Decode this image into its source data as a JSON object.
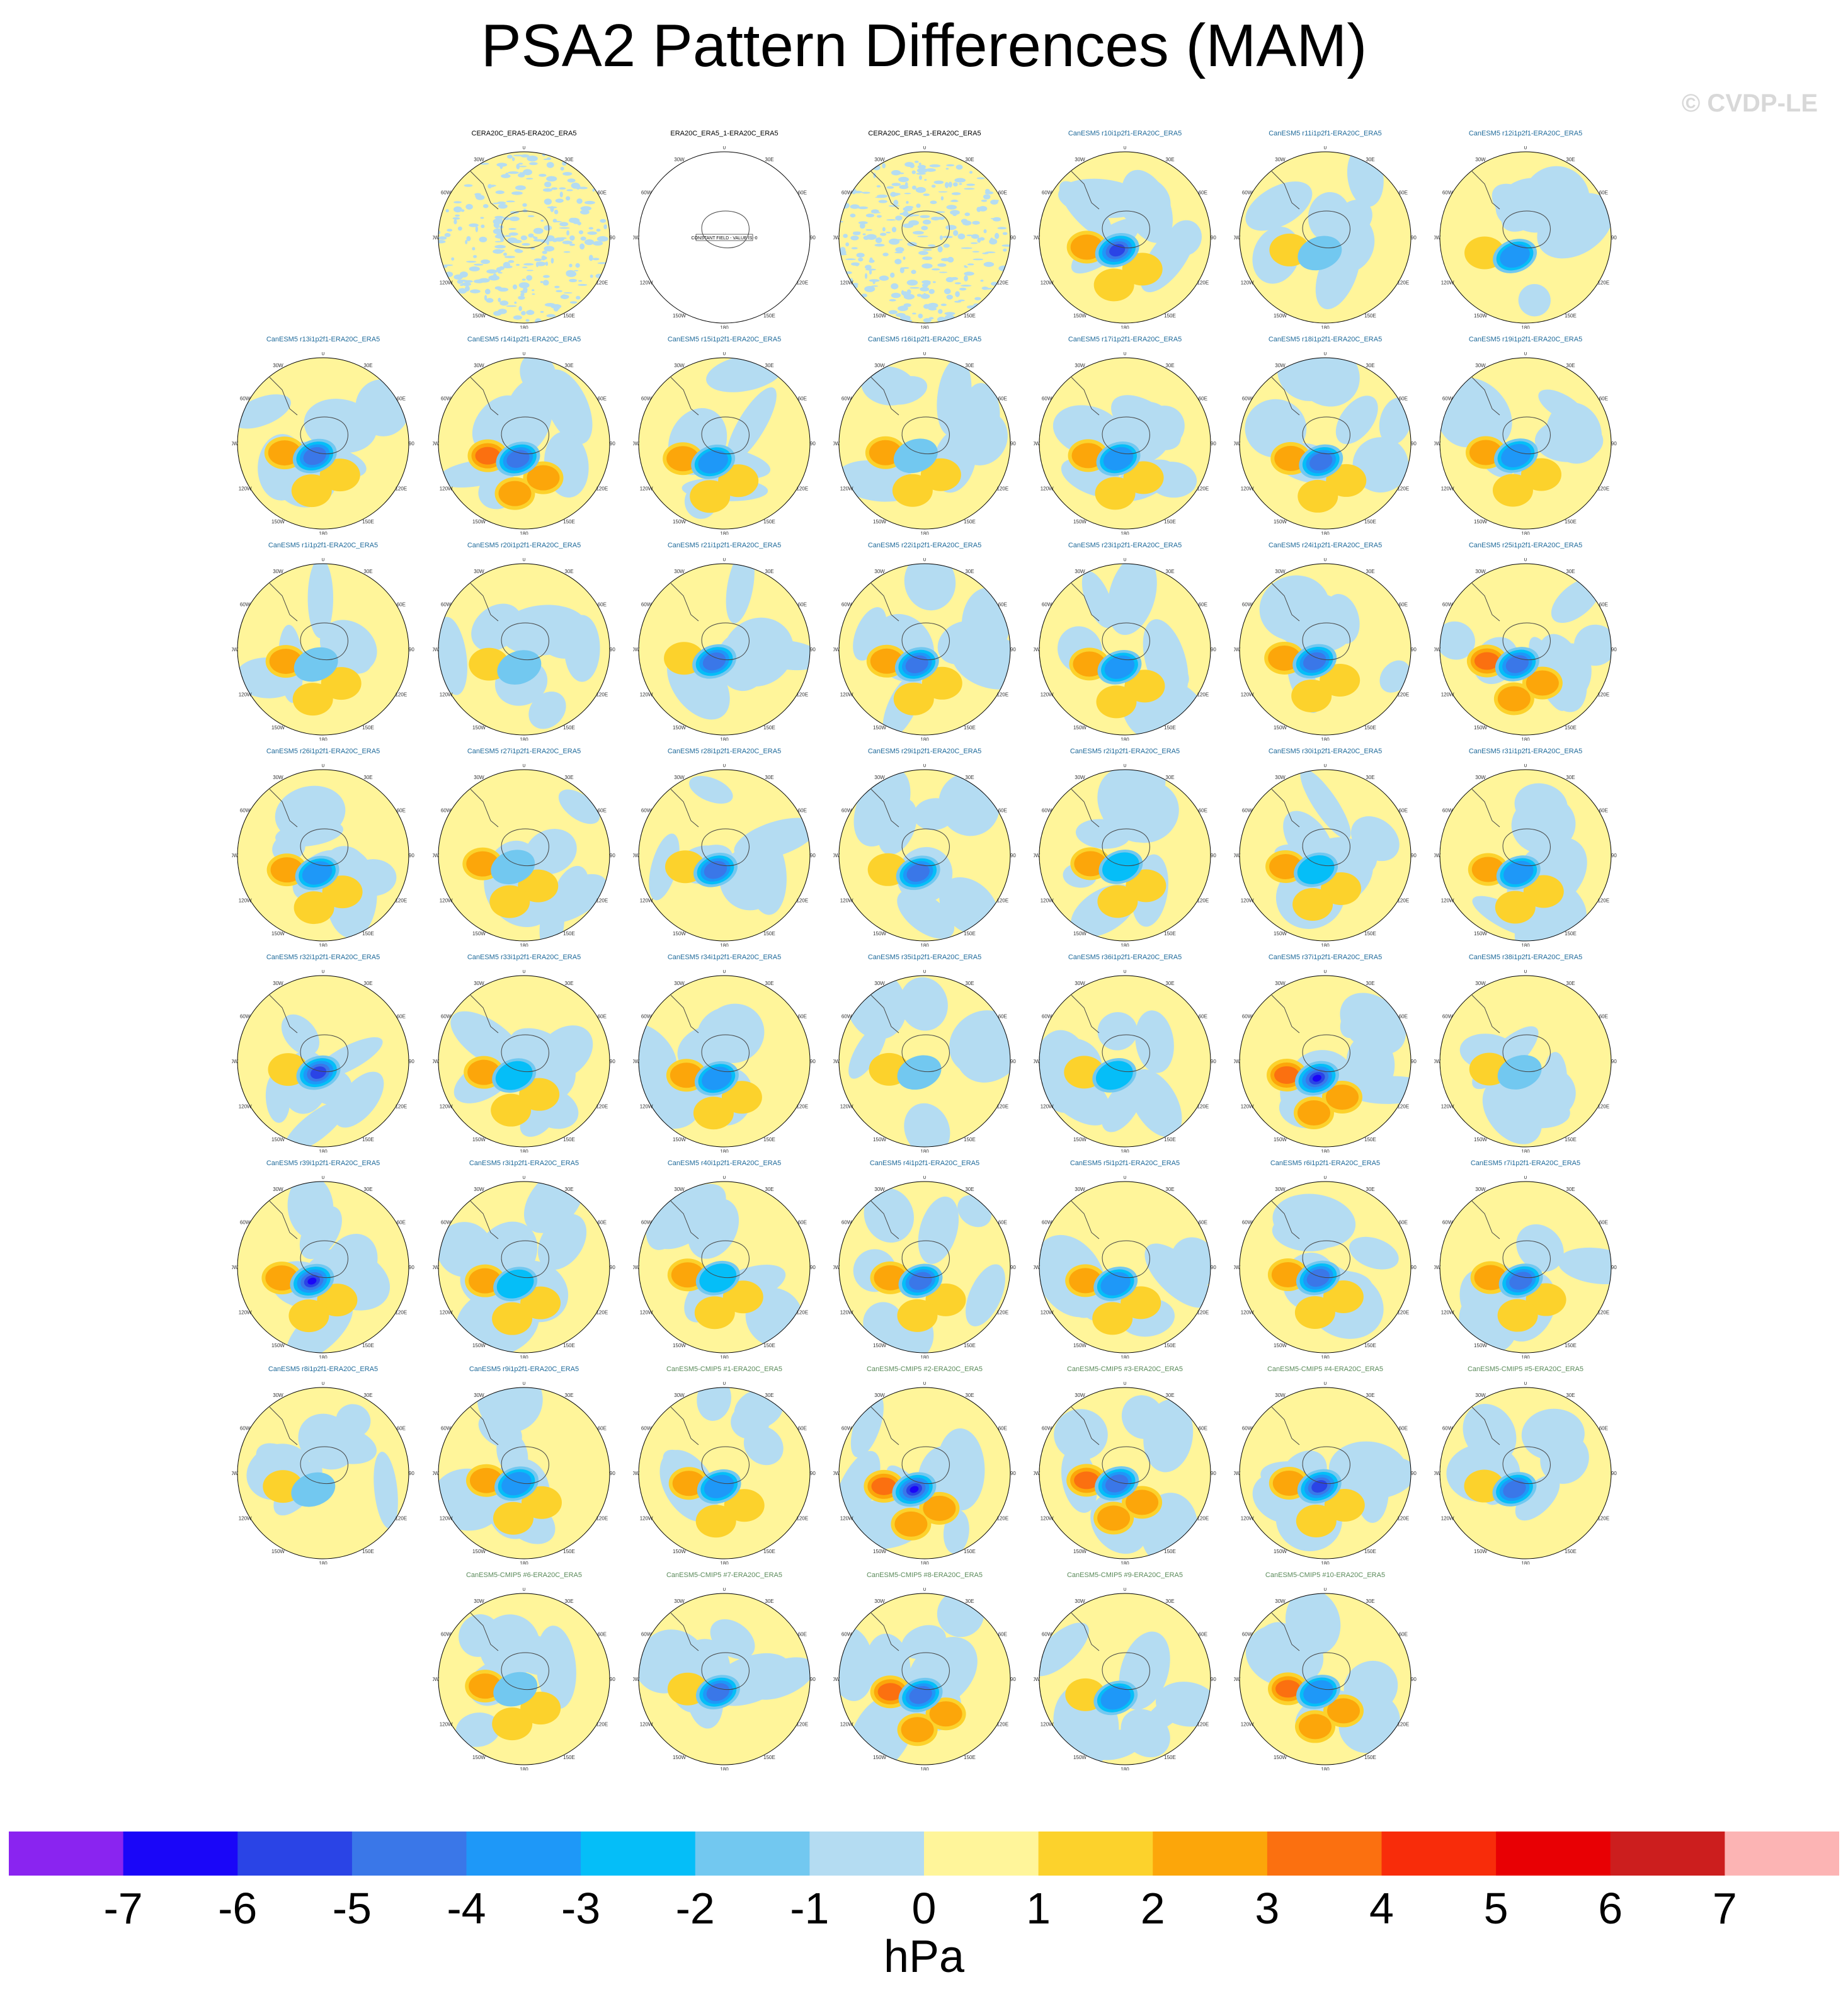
{
  "title": "PSA2 Pattern Differences (MAM)",
  "watermark": "© CVDP-LE",
  "units": "hPa",
  "lon_labels": [
    "0",
    "30E",
    "60E",
    "90E",
    "120E",
    "150E",
    "180",
    "150W",
    "120W",
    "90W",
    "60W",
    "30W"
  ],
  "constant_field_note": "CONSTANT FIELD - VALUE IS -0",
  "colors": {
    "title_obs": "#000000",
    "title_member": "#1f6a9a",
    "title_cmip": "#5a8a5a",
    "neg7": "#8a24f0",
    "neg6": "#1a06f8",
    "neg5": "#2a44e6",
    "neg4": "#3a77e8",
    "neg3": "#1e98f8",
    "neg2": "#05bef8",
    "neg1": "#72c8f0",
    "neg0": "#b4dcf2",
    "pos0": "#fff59a",
    "pos1": "#fcd22c",
    "pos2": "#fca60a",
    "pos3": "#fb7010",
    "pos4": "#f82c0a",
    "pos5": "#e80004",
    "pos6": "#cc1e1e",
    "pos7": "#fcb4b4"
  },
  "chart_data": {
    "type": "heatmap",
    "projection": "south-polar-stereographic",
    "variable": "PSA2 pattern difference",
    "season": "MAM",
    "units": "hPa",
    "colorbar": {
      "ticks": [
        "-7",
        "-6",
        "-5",
        "-4",
        "-3",
        "-2",
        "-1",
        "0",
        "1",
        "2",
        "3",
        "4",
        "5",
        "6",
        "7"
      ],
      "levels": [
        -7,
        -6,
        -5,
        -4,
        -3,
        -2,
        -1,
        0,
        1,
        2,
        3,
        4,
        5,
        6,
        7
      ],
      "colors": [
        "#8a24f0",
        "#1a06f8",
        "#2a44e6",
        "#3a77e8",
        "#1e98f8",
        "#05bef8",
        "#72c8f0",
        "#b4dcf2",
        "#fff59a",
        "#fcd22c",
        "#fca60a",
        "#fb7010",
        "#f82c0a",
        "#e80004",
        "#cc1e1e",
        "#fcb4b4"
      ]
    },
    "panels": [
      {
        "title": "CERA20C_ERA5-ERA20C_ERA5",
        "kind": "obs",
        "style": "noisy",
        "minimum": -1,
        "maximum": 1
      },
      {
        "title": "ERA20C_ERA5_1-ERA20C_ERA5",
        "kind": "obs",
        "style": "constant",
        "minimum": 0,
        "maximum": 0
      },
      {
        "title": "CERA20C_ERA5_1-ERA20C_ERA5",
        "kind": "obs",
        "style": "noisy",
        "minimum": -1,
        "maximum": 1
      },
      {
        "title": "CanESM5 r10i1p2f1-ERA20C_ERA5",
        "kind": "member",
        "minimum": -5,
        "maximum": 2
      },
      {
        "title": "CanESM5 r11i1p2f1-ERA20C_ERA5",
        "kind": "member",
        "minimum": -1,
        "maximum": 1
      },
      {
        "title": "CanESM5 r12i1p2f1-ERA20C_ERA5",
        "kind": "member",
        "minimum": -3,
        "maximum": 1
      },
      {
        "title": "CanESM5 r13i1p2f1-ERA20C_ERA5",
        "kind": "member",
        "minimum": -4,
        "maximum": 2
      },
      {
        "title": "CanESM5 r14i1p2f1-ERA20C_ERA5",
        "kind": "member",
        "minimum": -4,
        "maximum": 3
      },
      {
        "title": "CanESM5 r15i1p2f1-ERA20C_ERA5",
        "kind": "member",
        "minimum": -3,
        "maximum": 2
      },
      {
        "title": "CanESM5 r16i1p2f1-ERA20C_ERA5",
        "kind": "member",
        "minimum": -1,
        "maximum": 2
      },
      {
        "title": "CanESM5 r17i1p2f1-ERA20C_ERA5",
        "kind": "member",
        "minimum": -3,
        "maximum": 2
      },
      {
        "title": "CanESM5 r18i1p2f1-ERA20C_ERA5",
        "kind": "member",
        "minimum": -4,
        "maximum": 2
      },
      {
        "title": "CanESM5 r19i1p2f1-ERA20C_ERA5",
        "kind": "member",
        "minimum": -3,
        "maximum": 2
      },
      {
        "title": "CanESM5 r1i1p2f1-ERA20C_ERA5",
        "kind": "member",
        "minimum": -1,
        "maximum": 2
      },
      {
        "title": "CanESM5 r20i1p2f1-ERA20C_ERA5",
        "kind": "member",
        "minimum": -1,
        "maximum": 1
      },
      {
        "title": "CanESM5 r21i1p2f1-ERA20C_ERA5",
        "kind": "member",
        "minimum": -4,
        "maximum": 1
      },
      {
        "title": "CanESM5 r22i1p2f1-ERA20C_ERA5",
        "kind": "member",
        "minimum": -4,
        "maximum": 2
      },
      {
        "title": "CanESM5 r23i1p2f1-ERA20C_ERA5",
        "kind": "member",
        "minimum": -3,
        "maximum": 2
      },
      {
        "title": "CanESM5 r24i1p2f1-ERA20C_ERA5",
        "kind": "member",
        "minimum": -4,
        "maximum": 2
      },
      {
        "title": "CanESM5 r25i1p2f1-ERA20C_ERA5",
        "kind": "member",
        "minimum": -4,
        "maximum": 3
      },
      {
        "title": "CanESM5 r26i1p2f1-ERA20C_ERA5",
        "kind": "member",
        "minimum": -3,
        "maximum": 2
      },
      {
        "title": "CanESM5 r27i1p2f1-ERA20C_ERA5",
        "kind": "member",
        "minimum": -1,
        "maximum": 2
      },
      {
        "title": "CanESM5 r28i1p2f1-ERA20C_ERA5",
        "kind": "member",
        "minimum": -4,
        "maximum": 1
      },
      {
        "title": "CanESM5 r29i1p2f1-ERA20C_ERA5",
        "kind": "member",
        "minimum": -4,
        "maximum": 1
      },
      {
        "title": "CanESM5 r2i1p2f1-ERA20C_ERA5",
        "kind": "member",
        "minimum": -2,
        "maximum": 2
      },
      {
        "title": "CanESM5 r30i1p2f1-ERA20C_ERA5",
        "kind": "member",
        "minimum": -2,
        "maximum": 2
      },
      {
        "title": "CanESM5 r31i1p2f1-ERA20C_ERA5",
        "kind": "member",
        "minimum": -3,
        "maximum": 2
      },
      {
        "title": "CanESM5 r32i1p2f1-ERA20C_ERA5",
        "kind": "member",
        "minimum": -5,
        "maximum": 1
      },
      {
        "title": "CanESM5 r33i1p2f1-ERA20C_ERA5",
        "kind": "member",
        "minimum": -2,
        "maximum": 2
      },
      {
        "title": "CanESM5 r34i1p2f1-ERA20C_ERA5",
        "kind": "member",
        "minimum": -3,
        "maximum": 2
      },
      {
        "title": "CanESM5 r35i1p2f1-ERA20C_ERA5",
        "kind": "member",
        "minimum": -1,
        "maximum": 1
      },
      {
        "title": "CanESM5 r36i1p2f1-ERA20C_ERA5",
        "kind": "member",
        "minimum": -2,
        "maximum": 1
      },
      {
        "title": "CanESM5 r37i1p2f1-ERA20C_ERA5",
        "kind": "member",
        "minimum": -6,
        "maximum": 3
      },
      {
        "title": "CanESM5 r38i1p2f1-ERA20C_ERA5",
        "kind": "member",
        "minimum": -1,
        "maximum": 1
      },
      {
        "title": "CanESM5 r39i1p2f1-ERA20C_ERA5",
        "kind": "member",
        "minimum": -6,
        "maximum": 2
      },
      {
        "title": "CanESM5 r3i1p2f1-ERA20C_ERA5",
        "kind": "member",
        "minimum": -2,
        "maximum": 2
      },
      {
        "title": "CanESM5 r40i1p2f1-ERA20C_ERA5",
        "kind": "member",
        "minimum": -2,
        "maximum": 2
      },
      {
        "title": "CanESM5 r4i1p2f1-ERA20C_ERA5",
        "kind": "member",
        "minimum": -4,
        "maximum": 2
      },
      {
        "title": "CanESM5 r5i1p2f1-ERA20C_ERA5",
        "kind": "member",
        "minimum": -3,
        "maximum": 2
      },
      {
        "title": "CanESM5 r6i1p2f1-ERA20C_ERA5",
        "kind": "member",
        "minimum": -4,
        "maximum": 2
      },
      {
        "title": "CanESM5 r7i1p2f1-ERA20C_ERA5",
        "kind": "member",
        "minimum": -4,
        "maximum": 2
      },
      {
        "title": "CanESM5 r8i1p2f1-ERA20C_ERA5",
        "kind": "member",
        "minimum": -1,
        "maximum": 1
      },
      {
        "title": "CanESM5 r9i1p2f1-ERA20C_ERA5",
        "kind": "member",
        "minimum": -3,
        "maximum": 2
      },
      {
        "title": "CanESM5-CMIP5 #1-ERA20C_ERA5",
        "kind": "cmip",
        "minimum": -3,
        "maximum": 2
      },
      {
        "title": "CanESM5-CMIP5 #2-ERA20C_ERA5",
        "kind": "cmip",
        "minimum": -6,
        "maximum": 3
      },
      {
        "title": "CanESM5-CMIP5 #3-ERA20C_ERA5",
        "kind": "cmip",
        "minimum": -4,
        "maximum": 3
      },
      {
        "title": "CanESM5-CMIP5 #4-ERA20C_ERA5",
        "kind": "cmip",
        "minimum": -5,
        "maximum": 2
      },
      {
        "title": "CanESM5-CMIP5 #5-ERA20C_ERA5",
        "kind": "cmip",
        "minimum": -4,
        "maximum": 1
      },
      {
        "title": "CanESM5-CMIP5 #6-ERA20C_ERA5",
        "kind": "cmip",
        "minimum": -1,
        "maximum": 2
      },
      {
        "title": "CanESM5-CMIP5 #7-ERA20C_ERA5",
        "kind": "cmip",
        "minimum": -4,
        "maximum": 1
      },
      {
        "title": "CanESM5-CMIP5 #8-ERA20C_ERA5",
        "kind": "cmip",
        "minimum": -4,
        "maximum": 3
      },
      {
        "title": "CanESM5-CMIP5 #9-ERA20C_ERA5",
        "kind": "cmip",
        "minimum": -3,
        "maximum": 1
      },
      {
        "title": "CanESM5-CMIP5 #10-ERA20C_ERA5",
        "kind": "cmip",
        "minimum": -3,
        "maximum": 3
      }
    ]
  }
}
